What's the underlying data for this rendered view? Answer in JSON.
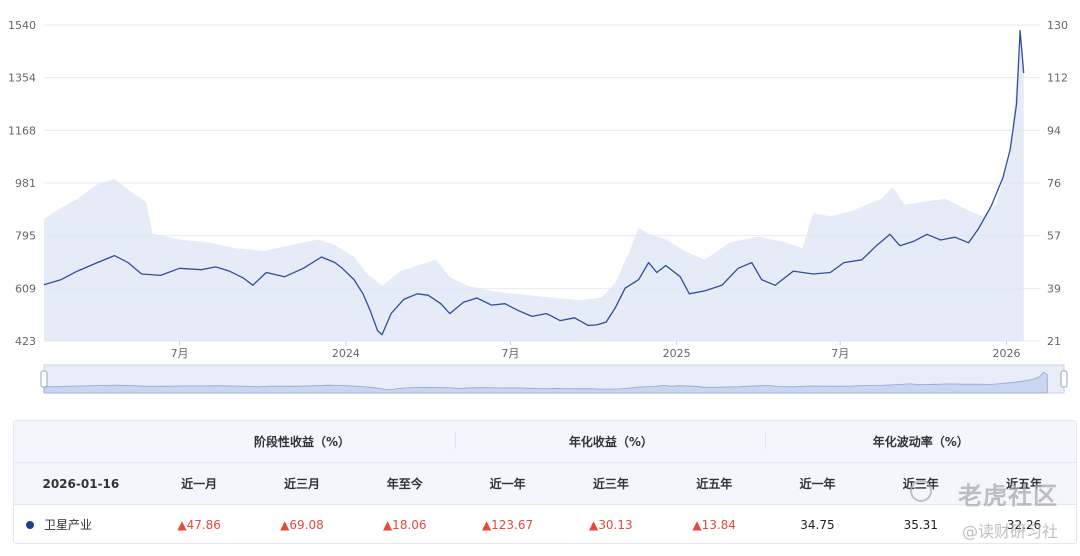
{
  "chart_data": {
    "type": "line",
    "title": "",
    "y_left": {
      "min": 423,
      "max": 1540,
      "ticks": [
        "1540",
        "1354",
        "1168",
        "981",
        "795",
        "609",
        "423"
      ]
    },
    "y_right": {
      "min": 21,
      "max": 130,
      "ticks": [
        "130",
        "112",
        "94",
        "76",
        "57",
        "39",
        "21"
      ]
    },
    "x_range": [
      "2023-02-01",
      "2026-02-07"
    ],
    "x_ticks": [
      {
        "date": "2023-07-01",
        "label": "7月"
      },
      {
        "date": "2024-01-01",
        "label": "2024"
      },
      {
        "date": "2024-07-01",
        "label": "7月"
      },
      {
        "date": "2025-01-01",
        "label": "2025"
      },
      {
        "date": "2025-07-01",
        "label": "7月"
      },
      {
        "date": "2026-01-01",
        "label": "2026"
      }
    ],
    "grid": true,
    "series": [
      {
        "type": "line",
        "axis": "left",
        "color": "#2f4f9b",
        "points": [
          [
            "2023-02-01",
            622
          ],
          [
            "2023-02-20",
            640
          ],
          [
            "2023-03-10",
            670
          ],
          [
            "2023-04-01",
            700
          ],
          [
            "2023-04-20",
            725
          ],
          [
            "2023-05-05",
            700
          ],
          [
            "2023-05-20",
            660
          ],
          [
            "2023-06-10",
            655
          ],
          [
            "2023-07-01",
            680
          ],
          [
            "2023-07-25",
            675
          ],
          [
            "2023-08-10",
            685
          ],
          [
            "2023-08-25",
            670
          ],
          [
            "2023-09-10",
            645
          ],
          [
            "2023-09-20",
            620
          ],
          [
            "2023-10-05",
            665
          ],
          [
            "2023-10-25",
            650
          ],
          [
            "2023-11-15",
            680
          ],
          [
            "2023-12-05",
            720
          ],
          [
            "2023-12-20",
            700
          ],
          [
            "2023-12-28",
            680
          ],
          [
            "2024-01-10",
            640
          ],
          [
            "2024-01-20",
            590
          ],
          [
            "2024-01-28",
            530
          ],
          [
            "2024-02-05",
            460
          ],
          [
            "2024-02-10",
            445
          ],
          [
            "2024-02-20",
            520
          ],
          [
            "2024-03-05",
            570
          ],
          [
            "2024-03-20",
            590
          ],
          [
            "2024-04-01",
            585
          ],
          [
            "2024-04-15",
            555
          ],
          [
            "2024-04-25",
            520
          ],
          [
            "2024-05-10",
            560
          ],
          [
            "2024-05-25",
            575
          ],
          [
            "2024-06-10",
            550
          ],
          [
            "2024-06-25",
            555
          ],
          [
            "2024-07-10",
            530
          ],
          [
            "2024-07-25",
            510
          ],
          [
            "2024-08-10",
            520
          ],
          [
            "2024-08-25",
            495
          ],
          [
            "2024-09-10",
            505
          ],
          [
            "2024-09-25",
            478
          ],
          [
            "2024-10-05",
            480
          ],
          [
            "2024-10-15",
            490
          ],
          [
            "2024-10-25",
            540
          ],
          [
            "2024-11-05",
            610
          ],
          [
            "2024-11-20",
            640
          ],
          [
            "2024-12-01",
            700
          ],
          [
            "2024-12-10",
            665
          ],
          [
            "2024-12-20",
            690
          ],
          [
            "2025-01-05",
            650
          ],
          [
            "2025-01-15",
            590
          ],
          [
            "2025-02-01",
            600
          ],
          [
            "2025-02-20",
            620
          ],
          [
            "2025-03-10",
            680
          ],
          [
            "2025-03-25",
            700
          ],
          [
            "2025-04-05",
            640
          ],
          [
            "2025-04-20",
            620
          ],
          [
            "2025-05-10",
            670
          ],
          [
            "2025-06-01",
            660
          ],
          [
            "2025-06-20",
            665
          ],
          [
            "2025-07-05",
            700
          ],
          [
            "2025-07-25",
            710
          ],
          [
            "2025-08-10",
            760
          ],
          [
            "2025-08-25",
            800
          ],
          [
            "2025-09-05",
            760
          ],
          [
            "2025-09-20",
            775
          ],
          [
            "2025-10-05",
            800
          ],
          [
            "2025-10-20",
            780
          ],
          [
            "2025-11-05",
            790
          ],
          [
            "2025-11-20",
            770
          ],
          [
            "2025-12-01",
            820
          ],
          [
            "2025-12-15",
            900
          ],
          [
            "2025-12-28",
            1000
          ],
          [
            "2026-01-05",
            1100
          ],
          [
            "2026-01-12",
            1260
          ],
          [
            "2026-01-16",
            1520
          ],
          [
            "2026-01-20",
            1370
          ]
        ]
      },
      {
        "type": "area",
        "axis": "right",
        "color": "#dfe6f5",
        "points": [
          [
            "2023-02-01",
            63
          ],
          [
            "2023-02-15",
            66
          ],
          [
            "2023-03-10",
            70
          ],
          [
            "2023-04-01",
            75
          ],
          [
            "2023-04-20",
            77
          ],
          [
            "2023-05-10",
            72
          ],
          [
            "2023-05-25",
            69
          ],
          [
            "2023-06-01",
            58
          ],
          [
            "2023-07-01",
            56
          ],
          [
            "2023-08-01",
            55
          ],
          [
            "2023-09-01",
            53
          ],
          [
            "2023-10-01",
            52
          ],
          [
            "2023-11-01",
            54
          ],
          [
            "2023-12-01",
            56
          ],
          [
            "2023-12-20",
            54
          ],
          [
            "2024-01-10",
            50
          ],
          [
            "2024-01-25",
            44
          ],
          [
            "2024-02-10",
            40
          ],
          [
            "2024-03-01",
            45
          ],
          [
            "2024-03-20",
            47
          ],
          [
            "2024-04-10",
            49
          ],
          [
            "2024-04-25",
            43
          ],
          [
            "2024-05-15",
            40
          ],
          [
            "2024-06-15",
            38
          ],
          [
            "2024-07-15",
            37
          ],
          [
            "2024-08-15",
            36
          ],
          [
            "2024-09-15",
            35
          ],
          [
            "2024-10-10",
            36
          ],
          [
            "2024-10-25",
            41
          ],
          [
            "2024-11-10",
            52
          ],
          [
            "2024-11-20",
            60
          ],
          [
            "2024-12-01",
            58
          ],
          [
            "2024-12-20",
            56
          ],
          [
            "2025-01-10",
            52
          ],
          [
            "2025-02-01",
            49
          ],
          [
            "2025-03-01",
            55
          ],
          [
            "2025-04-01",
            57
          ],
          [
            "2025-05-01",
            55
          ],
          [
            "2025-05-20",
            53
          ],
          [
            "2025-06-01",
            65
          ],
          [
            "2025-06-20",
            64
          ],
          [
            "2025-07-15",
            66
          ],
          [
            "2025-08-15",
            70
          ],
          [
            "2025-08-28",
            74
          ],
          [
            "2025-09-10",
            68
          ],
          [
            "2025-10-01",
            69
          ],
          [
            "2025-10-25",
            70
          ],
          [
            "2025-11-20",
            66
          ],
          [
            "2025-12-05",
            64
          ],
          [
            "2025-12-20",
            68
          ],
          [
            "2026-01-05",
            85
          ],
          [
            "2026-01-12",
            110
          ],
          [
            "2026-01-16",
            128
          ],
          [
            "2026-01-20",
            112
          ]
        ]
      }
    ]
  },
  "table": {
    "groups": [
      "阶段性收益（%）",
      "年化收益（%）",
      "年化波动率（%）"
    ],
    "date": "2026-01-16",
    "columns": [
      "近一月",
      "近三月",
      "年至今",
      "近一年",
      "近三年",
      "近五年",
      "近一年",
      "近三年",
      "近五年"
    ],
    "row": {
      "name": "卫星产业",
      "cells": [
        {
          "text": "▲47.86",
          "kind": "up"
        },
        {
          "text": "▲69.08",
          "kind": "up"
        },
        {
          "text": "▲18.06",
          "kind": "up"
        },
        {
          "text": "▲123.67",
          "kind": "up"
        },
        {
          "text": "▲30.13",
          "kind": "up"
        },
        {
          "text": "▲13.84",
          "kind": "up"
        },
        {
          "text": "34.75",
          "kind": "neutral"
        },
        {
          "text": "35.31",
          "kind": "neutral"
        },
        {
          "text": "32.26",
          "kind": "neutral"
        }
      ]
    }
  },
  "watermark": {
    "line1": "老虎社区",
    "line2": "@读财研习社"
  },
  "colors": {
    "line": "#2f4f9b",
    "area": "#dfe6f5",
    "up": "#e64a3b",
    "dot": "#1f3f8c"
  }
}
